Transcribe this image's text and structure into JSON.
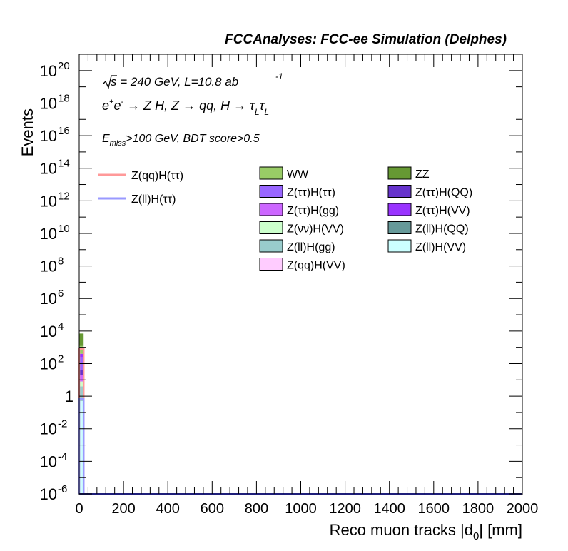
{
  "header": {
    "title": "FCCAnalyses: FCC-ee Simulation (Delphes)",
    "energy_line": "√s = 240 GeV, L=10.8 ab",
    "lumi_exp": "-1",
    "process_line": "e⁺e⁻ → Z H, Z → qq, H → τLτL",
    "cut_line": "Emiss>100 GeV, BDT score>0.5"
  },
  "chart_data": {
    "type": "bar",
    "title": "FCCAnalyses: FCC-ee Simulation (Delphes)",
    "xlabel": "Reco muon tracks |d0| [mm]",
    "ylabel": "Events",
    "xlim": [
      0,
      2000
    ],
    "ylim": [
      1e-06,
      1e+21
    ],
    "yscale": "log",
    "grid": false,
    "legend_placement": "top",
    "x_ticks": [
      0,
      200,
      400,
      600,
      800,
      1000,
      1200,
      1400,
      1600,
      1800,
      2000
    ],
    "y_ticks": [
      {
        "exp": -6,
        "label": "10",
        "sup": "-6"
      },
      {
        "exp": -4,
        "label": "10",
        "sup": "-4"
      },
      {
        "exp": -2,
        "label": "10",
        "sup": "-2"
      },
      {
        "exp": 0,
        "label": "1",
        "sup": ""
      },
      {
        "exp": 2,
        "label": "10",
        "sup": "2"
      },
      {
        "exp": 4,
        "label": "10",
        "sup": "4"
      },
      {
        "exp": 6,
        "label": "10",
        "sup": "6"
      },
      {
        "exp": 8,
        "label": "10",
        "sup": "8"
      },
      {
        "exp": 10,
        "label": "10",
        "sup": "10"
      },
      {
        "exp": 12,
        "label": "10",
        "sup": "12"
      },
      {
        "exp": 14,
        "label": "10",
        "sup": "14"
      },
      {
        "exp": 16,
        "label": "10",
        "sup": "16"
      },
      {
        "exp": 18,
        "label": "10",
        "sup": "18"
      },
      {
        "exp": 20,
        "label": "10",
        "sup": "20"
      }
    ],
    "bin": [
      0,
      20
    ],
    "stack": [
      {
        "name": "Z(ll)H(VV)",
        "color": "#ccffff",
        "bottom": 1e-06,
        "top": 0.5
      },
      {
        "name": "Z(ll)H(gg)",
        "color": "#99cccc",
        "bottom": 0.5,
        "top": 4
      },
      {
        "name": "Z(νν)H(VV)",
        "color": "#ccffcc",
        "bottom": 4,
        "top": 8
      },
      {
        "name": "Z(ττ)H(gg)",
        "color": "#cc66ff",
        "bottom": 8,
        "top": 20
      },
      {
        "name": "Z(ττ)H(QQ)",
        "color": "#6633cc",
        "bottom": 20,
        "top": 40
      },
      {
        "name": "Z(ττ)H(ττ)",
        "color": "#9966ff",
        "bottom": 40,
        "top": 250
      },
      {
        "name": "Z(ττ)H(VV)",
        "color": "#9933ff",
        "bottom": 250,
        "top": 400
      },
      {
        "name": "WW",
        "color": "#99cc66",
        "bottom": 400,
        "top": 1200
      },
      {
        "name": "ZZ",
        "color": "#669933",
        "bottom": 1200,
        "top": 7000
      }
    ],
    "signal_lines": [
      {
        "name": "Z(qq)H(ττ)",
        "color": "#ff9999",
        "value": 800
      },
      {
        "name": "Z(ll)H(ττ)",
        "color": "#9999ff",
        "value": 0.7
      }
    ],
    "legend_lines": [
      {
        "name": "Z(qq)H(ττ)",
        "color": "#ff9999"
      },
      {
        "name": "Z(ll)H(ττ)",
        "color": "#9999ff"
      }
    ],
    "legend_boxes": [
      {
        "name": "WW",
        "color": "#99cc66"
      },
      {
        "name": "ZZ",
        "color": "#669933"
      },
      {
        "name": "Z(ττ)H(ττ)",
        "color": "#9966ff"
      },
      {
        "name": "Z(ττ)H(QQ)",
        "color": "#6633cc"
      },
      {
        "name": "Z(ττ)H(gg)",
        "color": "#cc66ff"
      },
      {
        "name": "Z(ττ)H(VV)",
        "color": "#9933ff"
      },
      {
        "name": "Z(νν)H(VV)",
        "color": "#ccffcc"
      },
      {
        "name": "Z(ll)H(QQ)",
        "color": "#669999"
      },
      {
        "name": "Z(ll)H(gg)",
        "color": "#99cccc"
      },
      {
        "name": "Z(ll)H(VV)",
        "color": "#ccffff"
      },
      {
        "name": "Z(qq)H(VV)",
        "color": "#ffccff"
      }
    ]
  }
}
